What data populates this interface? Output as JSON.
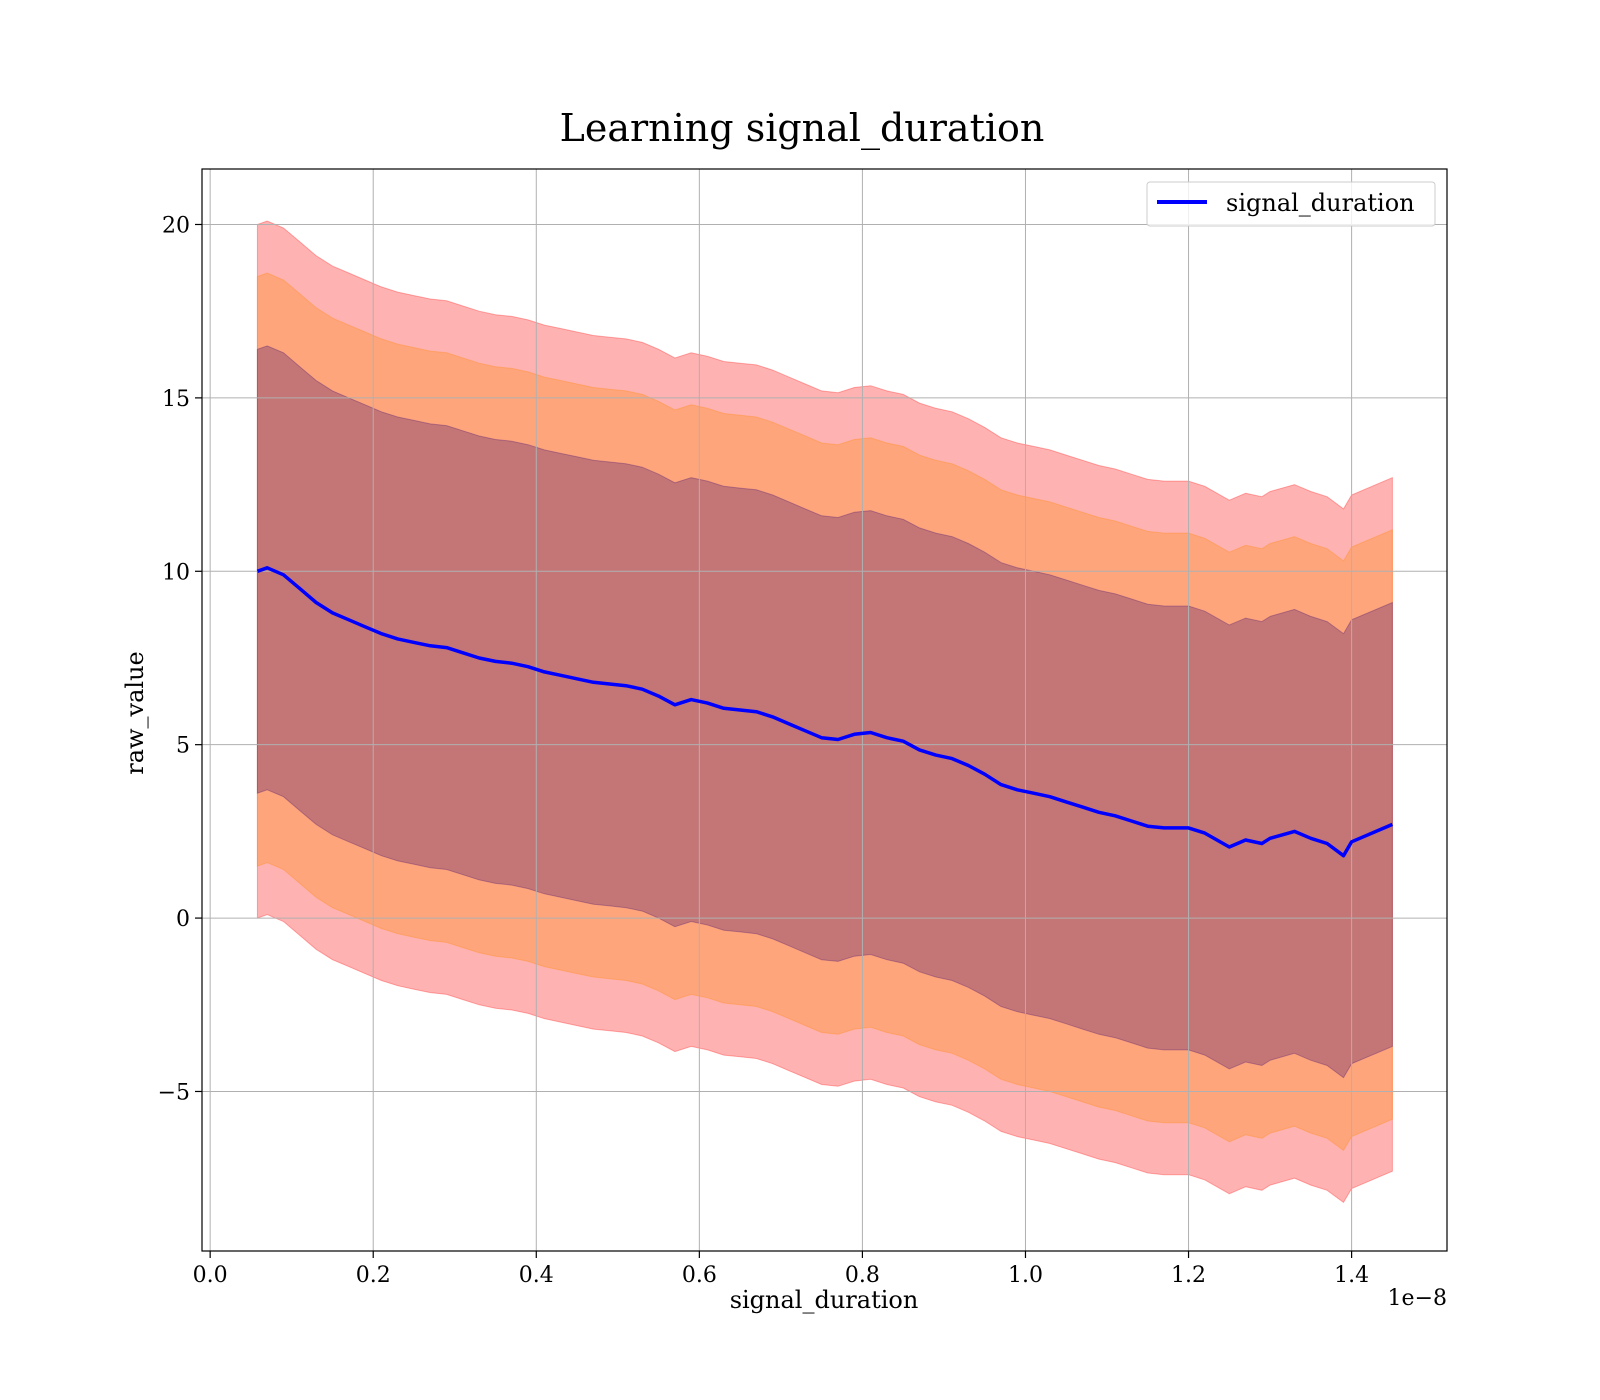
{
  "chart_data": {
    "type": "line",
    "title": "Learning signal_duration",
    "xlabel": "signal_duration",
    "ylabel": "raw_value",
    "x_offset_text": "1e−8",
    "xlim": [
      -0.01,
      1.517
    ],
    "ylim": [
      -9.6,
      21.6
    ],
    "grid": true,
    "legend_position": "top-right",
    "x_ticks": [
      0.0,
      0.2,
      0.4,
      0.6,
      0.8,
      1.0,
      1.2,
      1.4
    ],
    "x_tick_labels": [
      "0.0",
      "0.2",
      "0.4",
      "0.6",
      "0.8",
      "1.0",
      "1.2",
      "1.4"
    ],
    "y_ticks": [
      -5,
      0,
      5,
      10,
      15,
      20
    ],
    "y_tick_labels": [
      "−5",
      "0",
      "5",
      "10",
      "15",
      "20"
    ],
    "x": [
      0.058,
      0.07,
      0.09,
      0.11,
      0.13,
      0.15,
      0.17,
      0.19,
      0.21,
      0.23,
      0.25,
      0.27,
      0.29,
      0.31,
      0.33,
      0.35,
      0.37,
      0.39,
      0.41,
      0.43,
      0.45,
      0.47,
      0.49,
      0.51,
      0.53,
      0.55,
      0.57,
      0.59,
      0.61,
      0.63,
      0.65,
      0.67,
      0.69,
      0.71,
      0.73,
      0.75,
      0.77,
      0.79,
      0.81,
      0.83,
      0.85,
      0.87,
      0.89,
      0.91,
      0.93,
      0.95,
      0.97,
      0.99,
      1.01,
      1.03,
      1.05,
      1.07,
      1.09,
      1.11,
      1.13,
      1.15,
      1.17,
      1.2,
      1.22,
      1.25,
      1.27,
      1.29,
      1.3,
      1.33,
      1.35,
      1.37,
      1.39,
      1.4,
      1.45
    ],
    "series": [
      {
        "name": "signal_duration",
        "color": "#0000ff",
        "values": [
          10.0,
          10.1,
          9.9,
          9.5,
          9.1,
          8.8,
          8.6,
          8.4,
          8.2,
          8.05,
          7.95,
          7.85,
          7.8,
          7.65,
          7.5,
          7.4,
          7.35,
          7.25,
          7.1,
          7.0,
          6.9,
          6.8,
          6.75,
          6.7,
          6.6,
          6.4,
          6.15,
          6.3,
          6.2,
          6.05,
          6.0,
          5.95,
          5.8,
          5.6,
          5.4,
          5.2,
          5.15,
          5.3,
          5.35,
          5.2,
          5.1,
          4.85,
          4.7,
          4.6,
          4.4,
          4.15,
          3.85,
          3.7,
          3.6,
          3.5,
          3.35,
          3.2,
          3.05,
          2.95,
          2.8,
          2.65,
          2.6,
          2.6,
          2.45,
          2.05,
          2.25,
          2.15,
          2.3,
          2.5,
          2.3,
          2.15,
          1.8,
          2.2,
          2.7
        ]
      }
    ],
    "bands": [
      {
        "color": "#ff0000",
        "opacity": 0.3,
        "offset": 10.0
      },
      {
        "color": "#ff8800",
        "opacity": 0.3,
        "offset": 8.5
      },
      {
        "color": "#3a0a6e",
        "opacity": 0.3,
        "offset": 6.4
      }
    ]
  }
}
